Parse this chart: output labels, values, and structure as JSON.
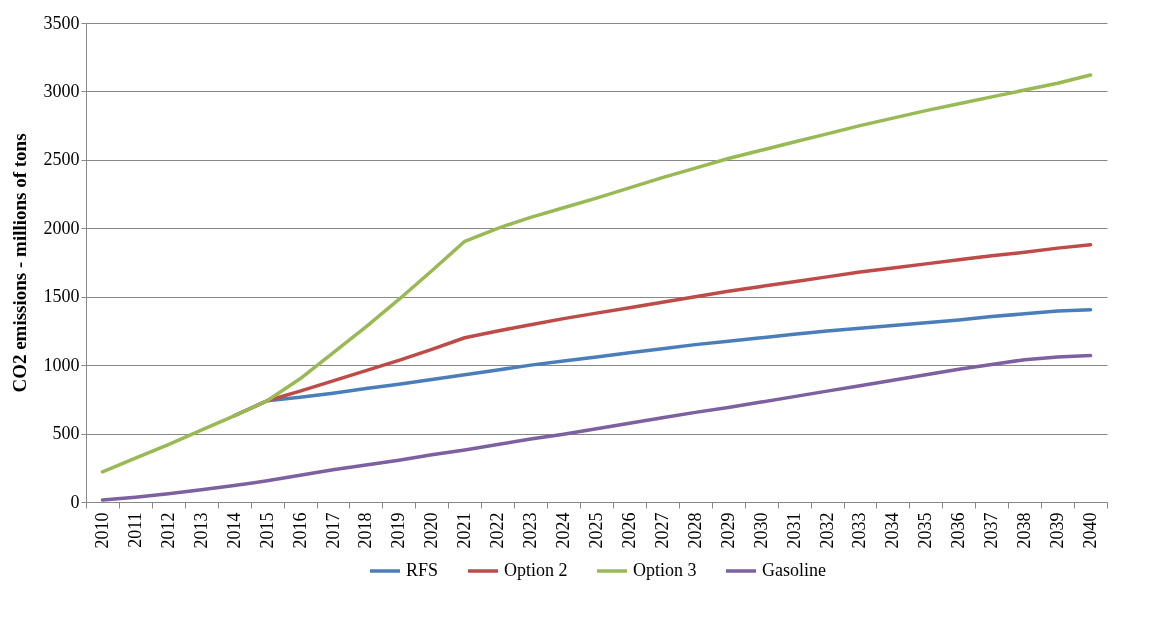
{
  "chart_data": {
    "type": "line",
    "ylabel": "CO2 emissions - millions of tons",
    "categories": [
      "2010",
      "2011",
      "2012",
      "2013",
      "2014",
      "2015",
      "2016",
      "2017",
      "2018",
      "2019",
      "2020",
      "2021",
      "2022",
      "2023",
      "2024",
      "2025",
      "2026",
      "2027",
      "2028",
      "2029",
      "2030",
      "2031",
      "2032",
      "2033",
      "2034",
      "2035",
      "2036",
      "2037",
      "2038",
      "2039",
      "2040"
    ],
    "series": [
      {
        "name": "RFS",
        "color": "#4a7ebb",
        "values": [
          null,
          null,
          null,
          null,
          630,
          740,
          765,
          795,
          830,
          860,
          895,
          930,
          965,
          1000,
          1030,
          1060,
          1090,
          1120,
          1150,
          1175,
          1200,
          1225,
          1250,
          1270,
          1290,
          1310,
          1330,
          1355,
          1375,
          1395,
          1405
        ]
      },
      {
        "name": "Option 2",
        "color": "#be4b48",
        "values": [
          null,
          null,
          null,
          null,
          630,
          740,
          810,
          885,
          960,
          1035,
          1115,
          1200,
          1250,
          1295,
          1340,
          1380,
          1420,
          1460,
          1500,
          1540,
          1575,
          1610,
          1645,
          1680,
          1710,
          1740,
          1770,
          1800,
          1825,
          1855,
          1880
        ]
      },
      {
        "name": "Option 3",
        "color": "#98b954",
        "values": [
          220,
          320,
          420,
          525,
          630,
          740,
          900,
          1090,
          1280,
          1480,
          1690,
          1905,
          2000,
          2080,
          2150,
          2220,
          2295,
          2370,
          2440,
          2510,
          2570,
          2630,
          2690,
          2750,
          2805,
          2860,
          2910,
          2960,
          3010,
          3060,
          3120
        ]
      },
      {
        "name": "Gasoline",
        "color": "#7d60a0",
        "values": [
          15,
          35,
          60,
          90,
          120,
          155,
          195,
          235,
          270,
          305,
          345,
          380,
          420,
          460,
          495,
          535,
          575,
          615,
          655,
          690,
          730,
          770,
          810,
          850,
          890,
          930,
          970,
          1005,
          1040,
          1060,
          1070
        ]
      }
    ],
    "ylim": [
      0,
      3500
    ],
    "yticks": [
      0,
      500,
      1000,
      1500,
      2000,
      2500,
      3000,
      3500
    ],
    "grid": "y",
    "legend": "bottom",
    "marker": "none",
    "line_style": "solid"
  }
}
